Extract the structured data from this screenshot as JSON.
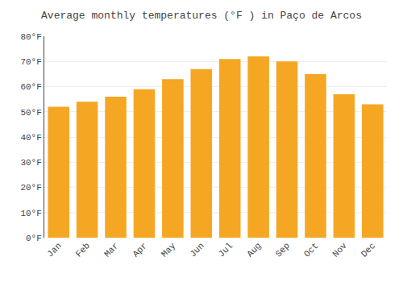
{
  "chart_data": {
    "type": "bar",
    "title": "Average monthly temperatures (°F ) in Paço de Arcos",
    "categories": [
      "Jan",
      "Feb",
      "Mar",
      "Apr",
      "May",
      "Jun",
      "Jul",
      "Aug",
      "Sep",
      "Oct",
      "Nov",
      "Dec"
    ],
    "values": [
      52,
      54,
      56,
      59,
      63,
      67,
      71,
      72,
      70,
      65,
      57,
      53
    ],
    "color": "#F5A623",
    "ylim": [
      0,
      80
    ],
    "yticks": [
      {
        "value": 0,
        "label": "0°F"
      },
      {
        "value": 10,
        "label": "10°F"
      },
      {
        "value": 20,
        "label": "20°F"
      },
      {
        "value": 30,
        "label": "30°F"
      },
      {
        "value": 40,
        "label": "40°F"
      },
      {
        "value": 50,
        "label": "50°F"
      },
      {
        "value": 60,
        "label": "60°F"
      },
      {
        "value": 70,
        "label": "70°F"
      },
      {
        "value": 80,
        "label": "80°F"
      }
    ],
    "grid": true
  }
}
